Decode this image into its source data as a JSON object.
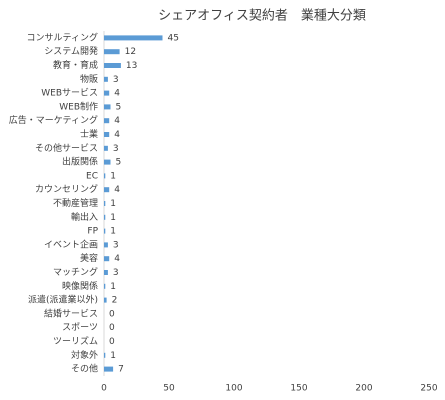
{
  "chart_data": {
    "type": "hbar",
    "title": "シェアオフィス契約者　業種大分類",
    "categories": [
      "コンサルティング",
      "システム開発",
      "教育・育成",
      "物販",
      "WEBサービス",
      "WEB制作",
      "広告・マーケティング",
      "士業",
      "その他サービス",
      "出版関係",
      "EC",
      "カウンセリング",
      "不動産管理",
      "輸出入",
      "FP",
      "イベント企画",
      "美容",
      "マッチング",
      "映像関係",
      "派遣(派遣業以外)",
      "結婚サービス",
      "スポーツ",
      "ツーリズム",
      "対象外",
      "その他"
    ],
    "values": [
      45,
      12,
      13,
      3,
      4,
      5,
      4,
      4,
      3,
      5,
      1,
      4,
      1,
      1,
      1,
      3,
      4,
      3,
      1,
      2,
      0,
      0,
      0,
      1,
      7
    ],
    "color": "#5b9bd5",
    "xlim": [
      0,
      250
    ],
    "xticks": [
      0,
      50,
      100,
      150,
      200,
      250
    ],
    "grid": false
  }
}
